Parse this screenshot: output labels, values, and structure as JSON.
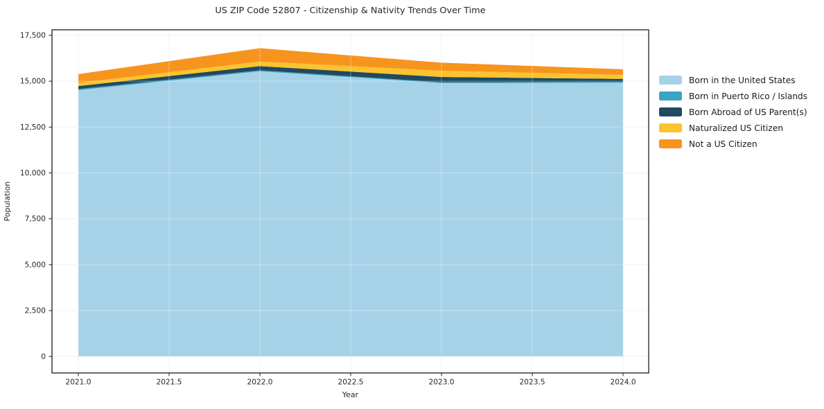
{
  "chart_data": {
    "type": "area",
    "stacked": true,
    "title": "US ZIP Code 52807 - Citizenship & Nativity Trends Over Time",
    "xlabel": "Year",
    "ylabel": "Population",
    "x": [
      2021,
      2022,
      2023,
      2024
    ],
    "series": [
      {
        "name": "Born in the United States",
        "color": "#a6d2e8",
        "values": [
          14510,
          15540,
          14900,
          14915
        ]
      },
      {
        "name": "Born in Puerto Rico / Islands",
        "color": "#3ba3c4",
        "values": [
          60,
          55,
          40,
          50
        ]
      },
      {
        "name": "Born Abroad of US Parent(s)",
        "color": "#1f4a5f",
        "values": [
          165,
          225,
          290,
          160
        ]
      },
      {
        "name": "Naturalized US Citizen",
        "color": "#fdc32e",
        "values": [
          175,
          250,
          340,
          225
        ]
      },
      {
        "name": "Not a US Citizen",
        "color": "#f7941e",
        "values": [
          475,
          730,
          440,
          300
        ]
      }
    ],
    "x_ticks": [
      2021.0,
      2021.5,
      2022.0,
      2022.5,
      2023.0,
      2023.5,
      2024.0
    ],
    "x_tick_labels": [
      "2021.0",
      "2021.5",
      "2022.0",
      "2022.5",
      "2023.0",
      "2023.5",
      "2024.0"
    ],
    "y_ticks": [
      0,
      2500,
      5000,
      7500,
      10000,
      12500,
      15000,
      17500
    ],
    "y_tick_labels": [
      "0",
      "2,500",
      "5,000",
      "7,500",
      "10,000",
      "12,500",
      "15,000",
      "17,500"
    ],
    "xlim": [
      2020.855,
      2024.141
    ],
    "ylim": [
      -900,
      17800
    ],
    "grid": true,
    "legend_position": "right-outside",
    "colors": {
      "axis": "#1a1a1a",
      "grid": "#eaeaea",
      "grid_overlay": "rgba(255,255,255,0.35)",
      "text": "#262626",
      "background": "#ffffff"
    }
  }
}
